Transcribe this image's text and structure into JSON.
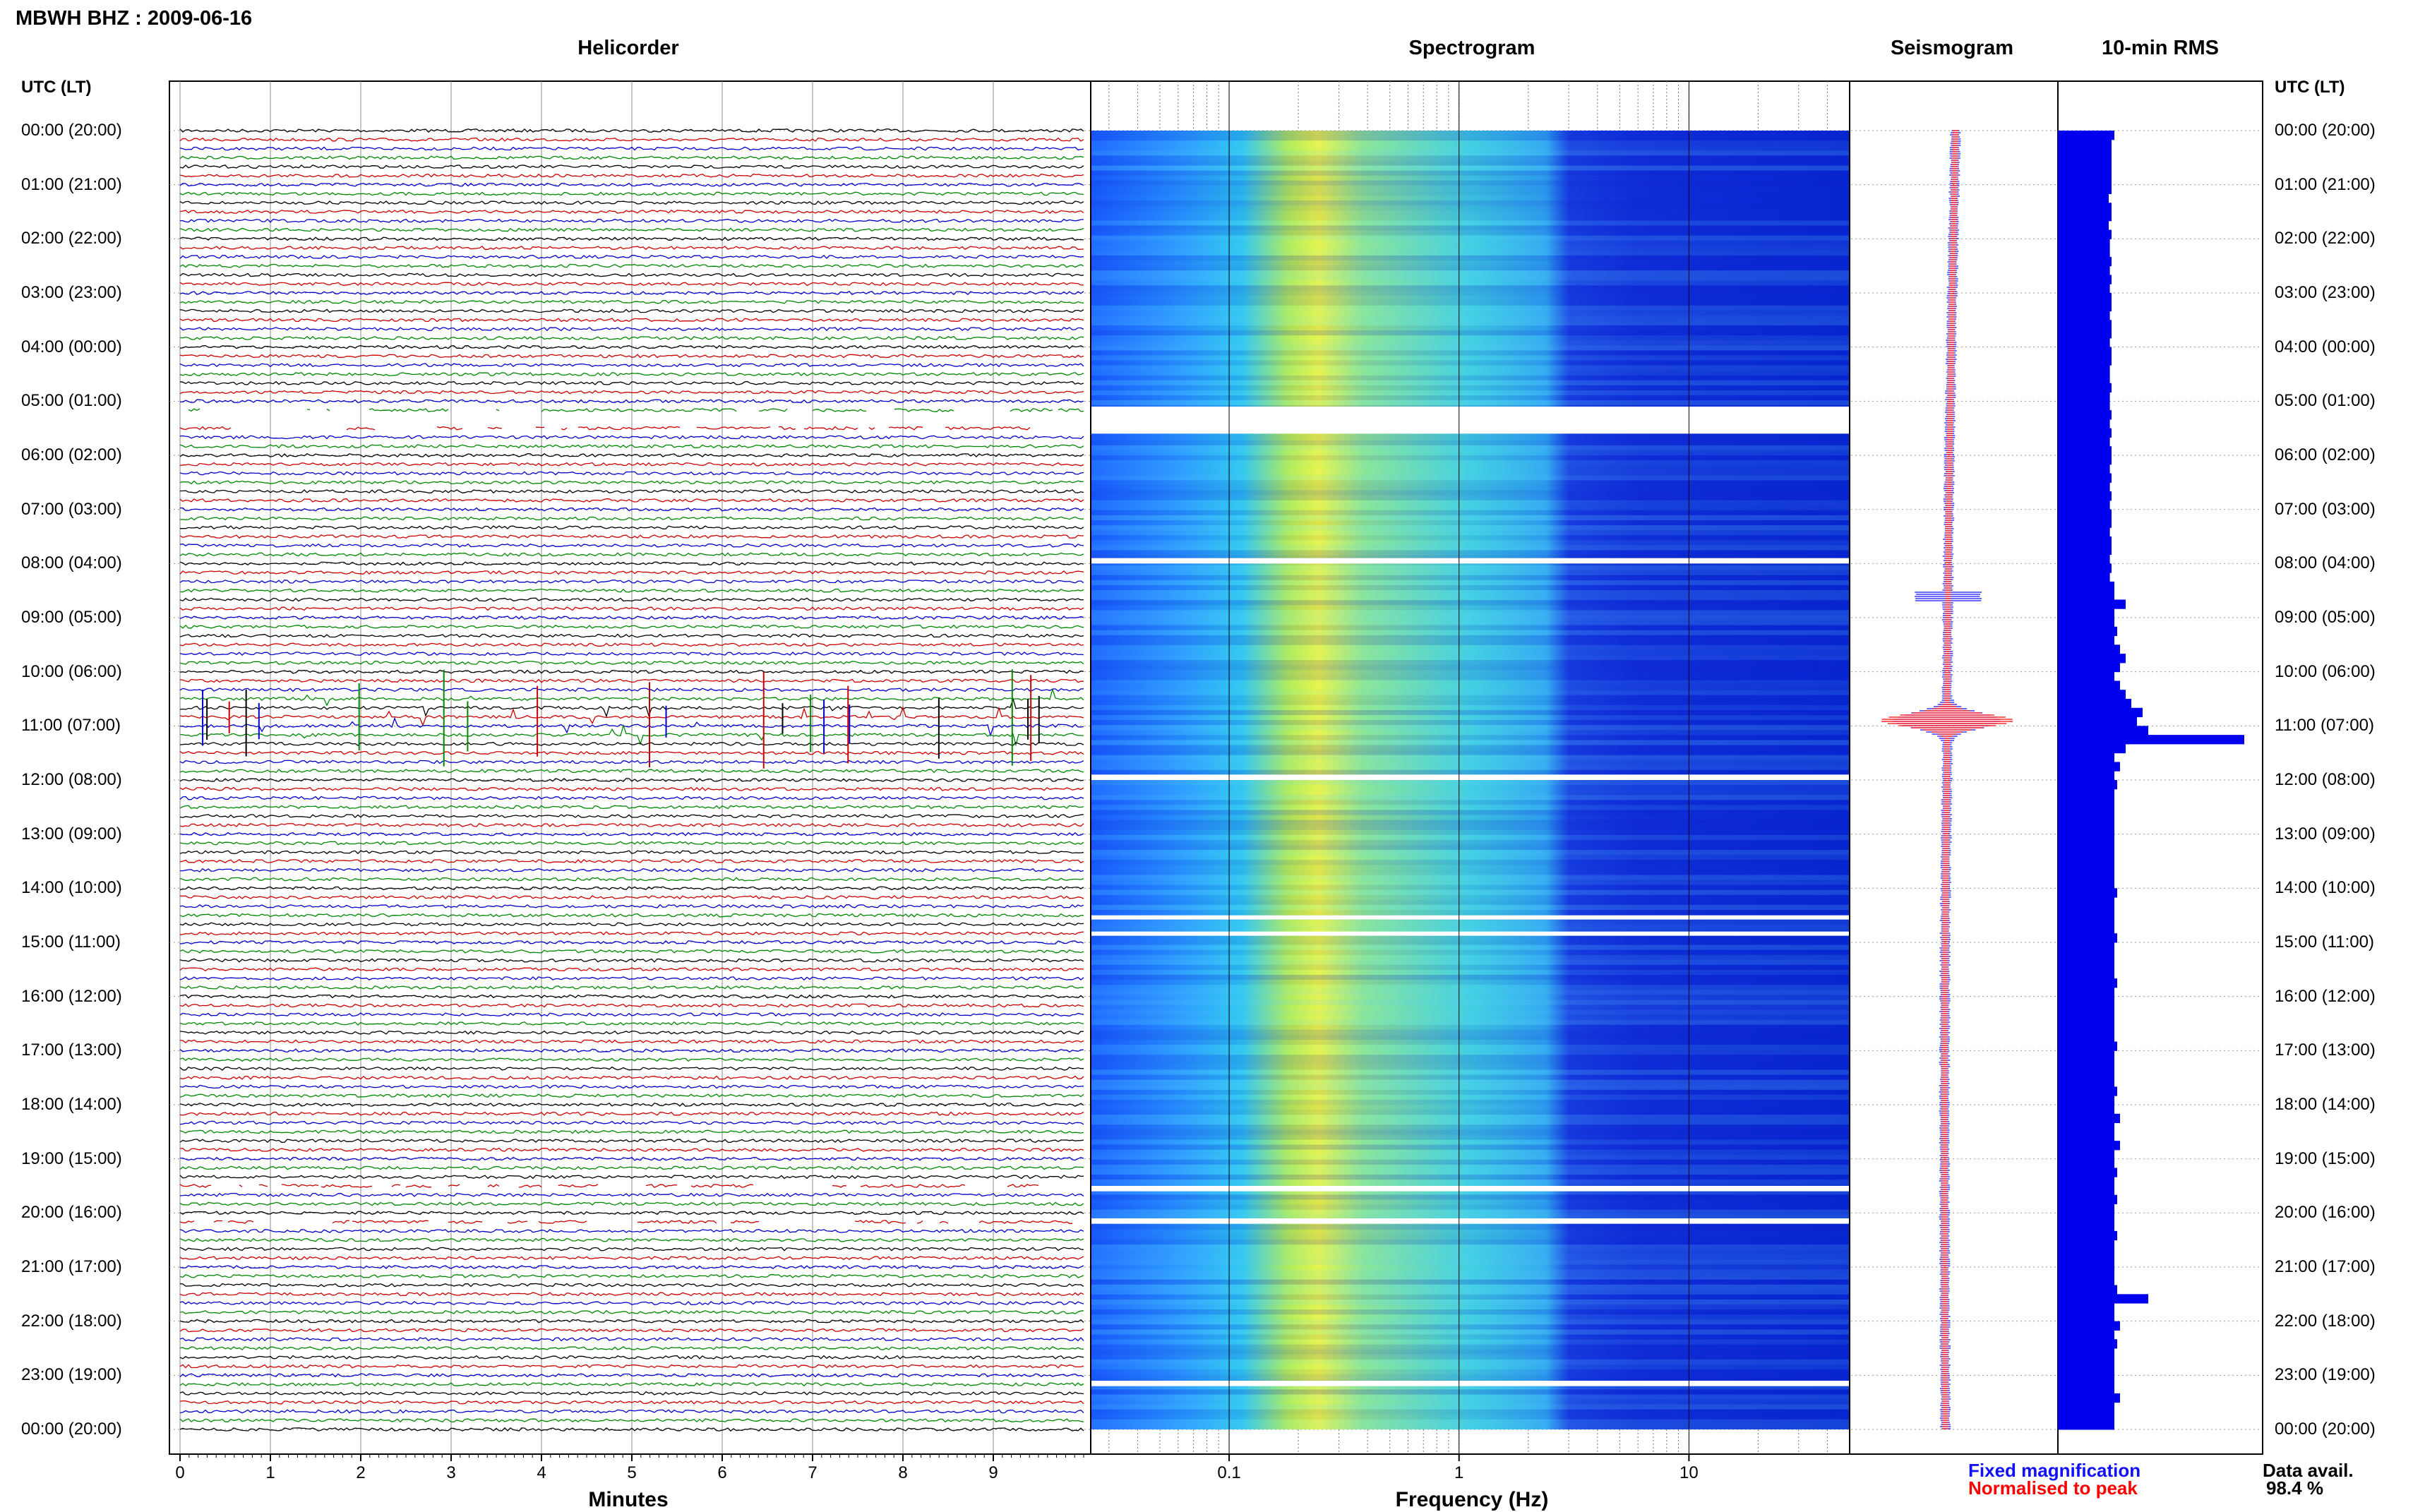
{
  "header": {
    "title": "MBWH BHZ : 2009-06-16"
  },
  "panels": {
    "helicorder": "Helicorder",
    "spectrogram": "Spectrogram",
    "seismogram": "Seismogram",
    "rms": "10-min RMS"
  },
  "time_axis": {
    "header_left": "UTC (LT)",
    "header_right": "UTC (LT)",
    "labels": [
      "00:00 (20:00)",
      "01:00 (21:00)",
      "02:00 (22:00)",
      "03:00 (23:00)",
      "04:00 (00:00)",
      "05:00 (01:00)",
      "06:00 (02:00)",
      "07:00 (03:00)",
      "08:00 (04:00)",
      "09:00 (05:00)",
      "10:00 (06:00)",
      "11:00 (07:00)",
      "12:00 (08:00)",
      "13:00 (09:00)",
      "14:00 (10:00)",
      "15:00 (11:00)",
      "16:00 (12:00)",
      "17:00 (13:00)",
      "18:00 (14:00)",
      "19:00 (15:00)",
      "20:00 (16:00)",
      "21:00 (17:00)",
      "22:00 (18:00)",
      "23:00 (19:00)",
      "00:00 (20:00)"
    ]
  },
  "bottom_axes": {
    "minutes_title": "Minutes",
    "minutes_ticks": [
      "0",
      "1",
      "2",
      "3",
      "4",
      "5",
      "6",
      "7",
      "8",
      "9"
    ],
    "frequency_title": "Frequency (Hz)",
    "frequency_ticks": [
      "0.1",
      "1",
      "10"
    ]
  },
  "legend": {
    "fixed": "Fixed magnification",
    "normalised": "Normalised to peak",
    "fixed_color": "#1010ff",
    "normalised_color": "#ff0000"
  },
  "availability": {
    "label": "Data avail.",
    "value": "98.4 %"
  },
  "colors": {
    "trace_cycle": [
      "#000000",
      "#cc0000",
      "#0000cc",
      "#008800"
    ],
    "rms_fill": "#0000ee",
    "spectrogram_low": "#0010a0",
    "spectrogram_high": "#ffff40"
  },
  "chart_data": [
    {
      "type": "line",
      "title": "Helicorder",
      "xlabel": "Minutes",
      "xlim": [
        0,
        10
      ],
      "rows_per_hour": 6,
      "ylim_hours": [
        0,
        24
      ],
      "gaps_hours": [
        [
          5.1,
          5.6
        ],
        [
          19.5,
          19.6
        ],
        [
          20.1,
          20.2
        ]
      ],
      "high_activity_hours": [
        10.5,
        11.2
      ]
    },
    {
      "type": "heatmap",
      "title": "Spectrogram",
      "xlabel": "Frequency (Hz)",
      "x_scale": "log",
      "xlim": [
        0.025,
        50
      ],
      "ylim_hours": [
        0,
        24
      ],
      "gaps_hours": [
        [
          5.1,
          5.6
        ],
        [
          7.9,
          8.0
        ],
        [
          11.9,
          12.0
        ],
        [
          14.5,
          14.55
        ],
        [
          14.8,
          14.85
        ],
        [
          19.5,
          19.6
        ],
        [
          20.1,
          20.2
        ],
        [
          23.1,
          23.2
        ]
      ],
      "peak_band_hz": [
        0.2,
        0.35
      ]
    },
    {
      "type": "line",
      "title": "Seismogram",
      "series": [
        {
          "name": "Fixed magnification"
        },
        {
          "name": "Normalised to peak"
        }
      ],
      "ylim_hours": [
        0,
        24
      ],
      "peak_hour": 10.9
    },
    {
      "type": "bar",
      "title": "10-min RMS",
      "orientation": "horizontal",
      "ylim_hours": [
        0,
        24
      ],
      "bin_minutes": 10,
      "values": [
        1.0,
        0.95,
        0.95,
        0.95,
        0.95,
        0.95,
        0.95,
        0.9,
        0.95,
        0.95,
        0.9,
        0.95,
        0.92,
        0.92,
        0.95,
        0.92,
        0.95,
        0.92,
        0.95,
        0.95,
        0.92,
        0.95,
        0.95,
        0.92,
        0.95,
        0.95,
        0.92,
        0.92,
        0.95,
        0.92,
        0.92,
        0.95,
        0.92,
        0.95,
        0.92,
        0.95,
        0.95,
        0.92,
        0.95,
        0.92,
        0.95,
        0.92,
        0.95,
        0.95,
        0.92,
        0.95,
        0.95,
        0.92,
        0.95,
        0.92,
        1.0,
        1.0,
        1.2,
        1.0,
        1.0,
        1.05,
        1.0,
        1.1,
        1.2,
        1.1,
        1.0,
        1.1,
        1.2,
        1.3,
        1.5,
        1.4,
        1.6,
        3.3,
        1.2,
        1.0,
        1.1,
        1.0,
        1.05,
        1.0,
        1.0,
        1.0,
        1.0,
        1.0,
        1.0,
        1.0,
        1.0,
        1.0,
        1.0,
        1.0,
        1.05,
        1.0,
        1.0,
        1.0,
        1.0,
        1.05,
        1.0,
        1.0,
        1.0,
        1.0,
        1.05,
        1.0,
        1.0,
        1.0,
        1.0,
        1.0,
        1.0,
        1.05,
        1.0,
        1.0,
        1.0,
        1.0,
        1.05,
        1.0,
        1.0,
        1.1,
        1.0,
        1.0,
        1.1,
        1.0,
        1.0,
        1.05,
        1.0,
        1.0,
        1.05,
        1.0,
        1.0,
        1.0,
        1.05,
        1.0,
        1.0,
        1.0,
        1.0,
        1.0,
        1.05,
        1.6,
        1.0,
        1.0,
        1.1,
        1.0,
        1.05,
        1.0,
        1.0,
        1.0,
        1.0,
        1.0,
        1.1,
        1.0,
        1.0,
        1.0
      ]
    }
  ]
}
